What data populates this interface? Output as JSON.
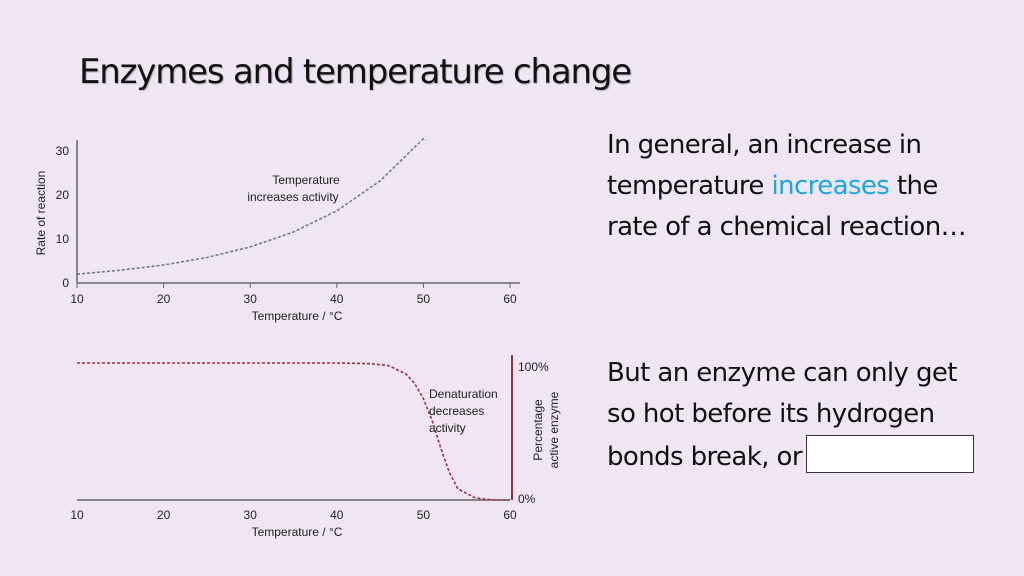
{
  "slide": {
    "title": "Enzymes and temperature change",
    "paragraph1_pre": "In general, an increase in temperature ",
    "paragraph1_highlight": "increases",
    "paragraph1_post": " the rate of a chemical reaction…",
    "paragraph2": "But an enzyme can only get so hot before its hydrogen bonds break, or",
    "highlight_color": "#1aa7e0"
  },
  "chart_data": [
    {
      "type": "line",
      "xlabel": "Temperature / °C",
      "ylabel": "Rate of reaction",
      "xlim": [
        10,
        60
      ],
      "ylim": [
        0,
        30
      ],
      "xticks": [
        10,
        20,
        30,
        40,
        50,
        60
      ],
      "yticks": [
        0,
        10,
        20,
        30
      ],
      "annotation": [
        "Temperature",
        "increases activity"
      ],
      "line_color": "#6a7a8a",
      "line_style": "dashed",
      "series": [
        {
          "x": [
            10,
            15,
            20,
            25,
            30,
            35,
            40,
            45,
            50,
            51
          ],
          "values": [
            2,
            2.9,
            4.1,
            5.8,
            8.2,
            11.6,
            16.4,
            23.2,
            32.8,
            35
          ]
        }
      ]
    },
    {
      "type": "line",
      "xlabel": "Temperature / °C",
      "ylabel": "Percentage active enzyme",
      "xlim": [
        10,
        60
      ],
      "ylim": [
        0,
        100
      ],
      "xticks": [
        10,
        20,
        30,
        40,
        50,
        60
      ],
      "yticks": [
        "0%",
        "100%"
      ],
      "annotation": [
        "Denaturation",
        "decreases",
        "activity"
      ],
      "line_color": "#9a3040",
      "line_style": "dashed",
      "series": [
        {
          "x": [
            10,
            20,
            30,
            40,
            44,
            46,
            48,
            49,
            50,
            51,
            52,
            53,
            54,
            56,
            58,
            60
          ],
          "values": [
            100,
            100,
            100,
            100,
            99.5,
            98,
            92,
            85,
            74,
            58,
            38,
            20,
            8,
            1.5,
            0,
            0
          ]
        }
      ]
    }
  ]
}
